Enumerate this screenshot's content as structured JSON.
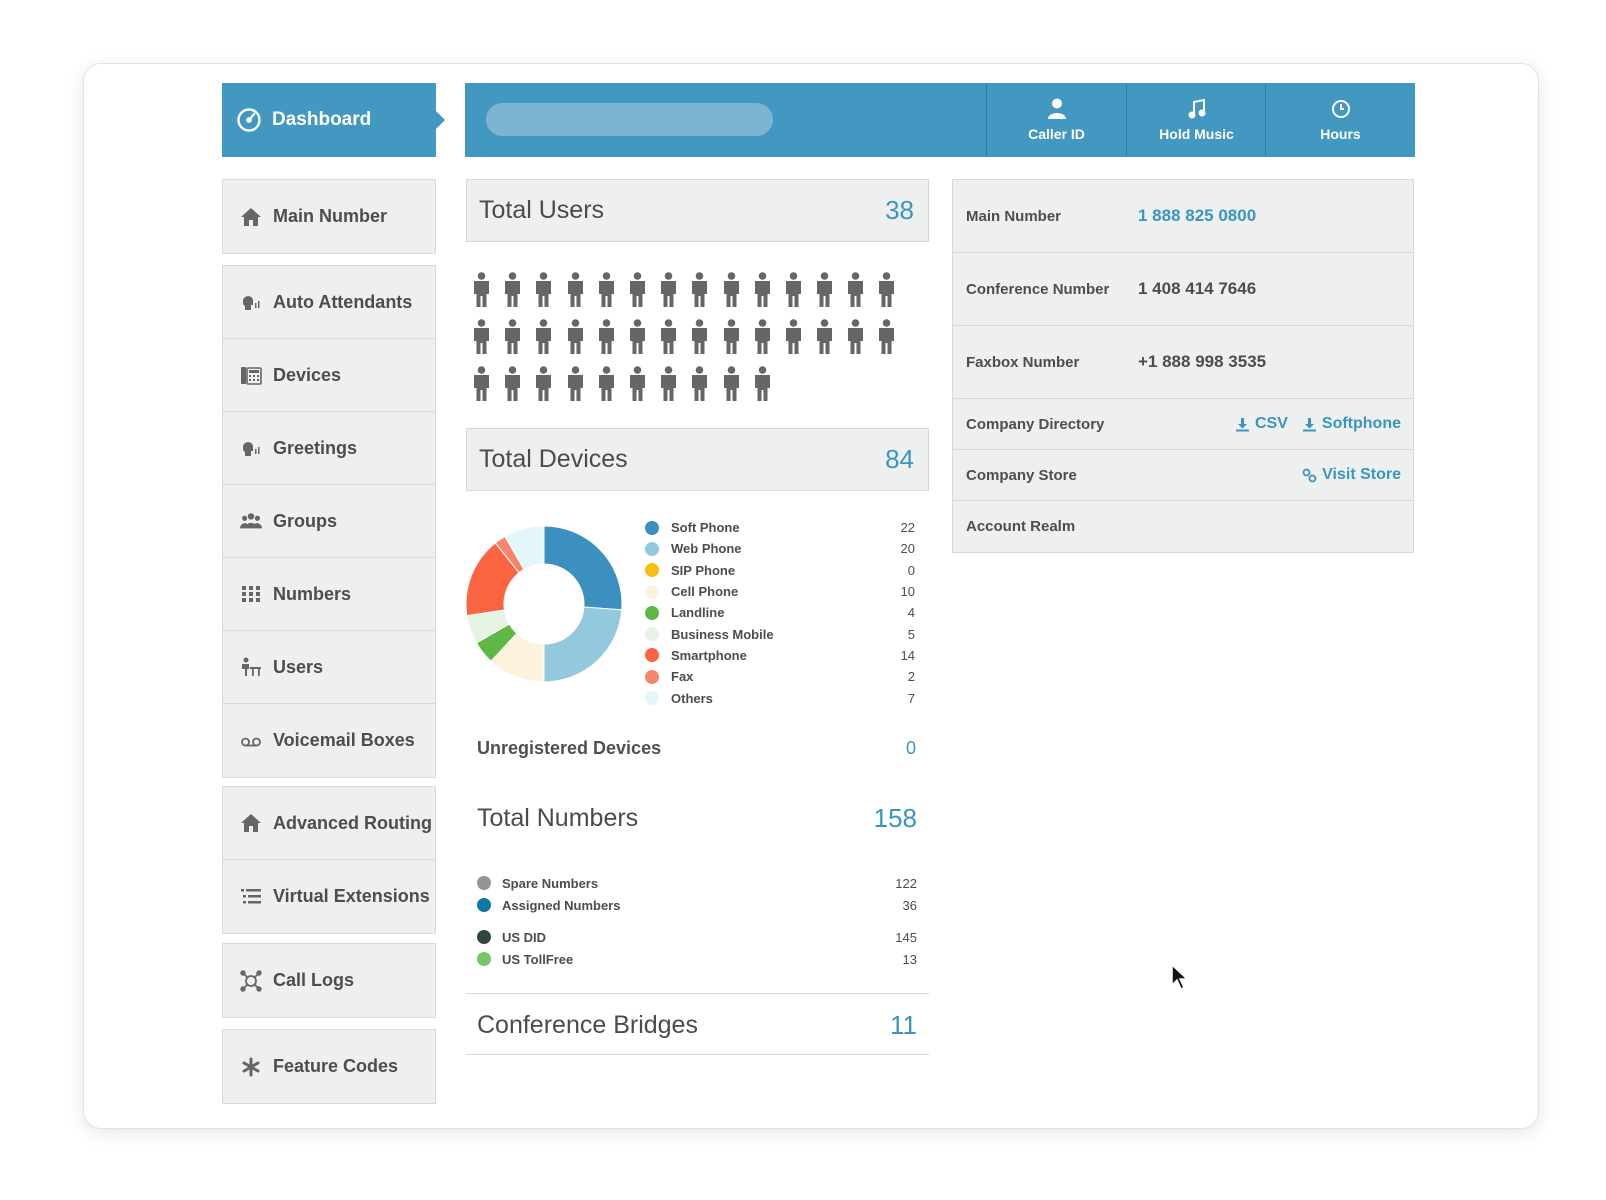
{
  "sidebar": {
    "dashboard_label": "Dashboard",
    "groups": [
      [
        {
          "label": "Main Number",
          "icon": "home-icon"
        }
      ],
      [
        {
          "label": "Auto Attendants",
          "icon": "speaker-head-icon"
        },
        {
          "label": "Devices",
          "icon": "phone-device-icon"
        },
        {
          "label": "Greetings",
          "icon": "speaker-head-icon"
        },
        {
          "label": "Groups",
          "icon": "people-group-icon"
        },
        {
          "label": "Numbers",
          "icon": "keypad-icon"
        },
        {
          "label": "Users",
          "icon": "users-desk-icon"
        },
        {
          "label": "Voicemail Boxes",
          "icon": "voicemail-icon"
        }
      ],
      [
        {
          "label": "Advanced Routing",
          "icon": "home-icon"
        },
        {
          "label": "Virtual Extensions",
          "icon": "list-icon"
        }
      ],
      [
        {
          "label": "Call Logs",
          "icon": "network-icon"
        }
      ],
      [
        {
          "label": "Feature Codes",
          "icon": "asterisk-icon"
        }
      ]
    ]
  },
  "topbar": {
    "buttons": [
      {
        "label": "Caller ID",
        "icon": "person-icon"
      },
      {
        "label": "Hold Music",
        "icon": "music-note-icon"
      },
      {
        "label": "Hours",
        "icon": "clock-icon"
      }
    ]
  },
  "users": {
    "title": "Total Users",
    "count": "38",
    "count_value": 38
  },
  "devices": {
    "title": "Total Devices",
    "count": "84",
    "items": [
      {
        "label": "Soft Phone",
        "value": "22",
        "color": "#3b90c0"
      },
      {
        "label": "Web Phone",
        "value": "20",
        "color": "#93c9df"
      },
      {
        "label": "SIP Phone",
        "value": "0",
        "color": "#f8c00e"
      },
      {
        "label": "Cell Phone",
        "value": "10",
        "color": "#fdf3dd"
      },
      {
        "label": "Landline",
        "value": "4",
        "color": "#5fb844"
      },
      {
        "label": "Business Mobile",
        "value": "5",
        "color": "#e6f4e3"
      },
      {
        "label": "Smartphone",
        "value": "14",
        "color": "#fb6440"
      },
      {
        "label": "Fax",
        "value": "2",
        "color": "#f7856b"
      },
      {
        "label": "Others",
        "value": "7",
        "color": "#e2f7fb"
      }
    ]
  },
  "unregistered": {
    "label": "Unregistered Devices",
    "value": "0"
  },
  "numbers": {
    "title": "Total Numbers",
    "count": "158",
    "group_a": [
      {
        "label": "Spare Numbers",
        "value": "122",
        "color": "#959595"
      },
      {
        "label": "Assigned Numbers",
        "value": "36",
        "color": "#0c78a4"
      }
    ],
    "group_b": [
      {
        "label": "US DID",
        "value": "145",
        "color": "#31463f"
      },
      {
        "label": "US TollFree",
        "value": "13",
        "color": "#76c569"
      }
    ]
  },
  "conference": {
    "title": "Conference Bridges",
    "count": "11"
  },
  "info": {
    "main_number_label": "Main Number",
    "main_number_value": "1 888 825 0800",
    "conference_label": "Conference Number",
    "conference_value": "1 408 414 7646",
    "faxbox_label": "Faxbox Number",
    "faxbox_value": "+1 888 998 3535",
    "directory_label": "Company Directory",
    "directory_csv": "CSV",
    "directory_softphone": "Softphone",
    "store_label": "Company Store",
    "store_link": "Visit Store",
    "realm_label": "Account Realm"
  }
}
